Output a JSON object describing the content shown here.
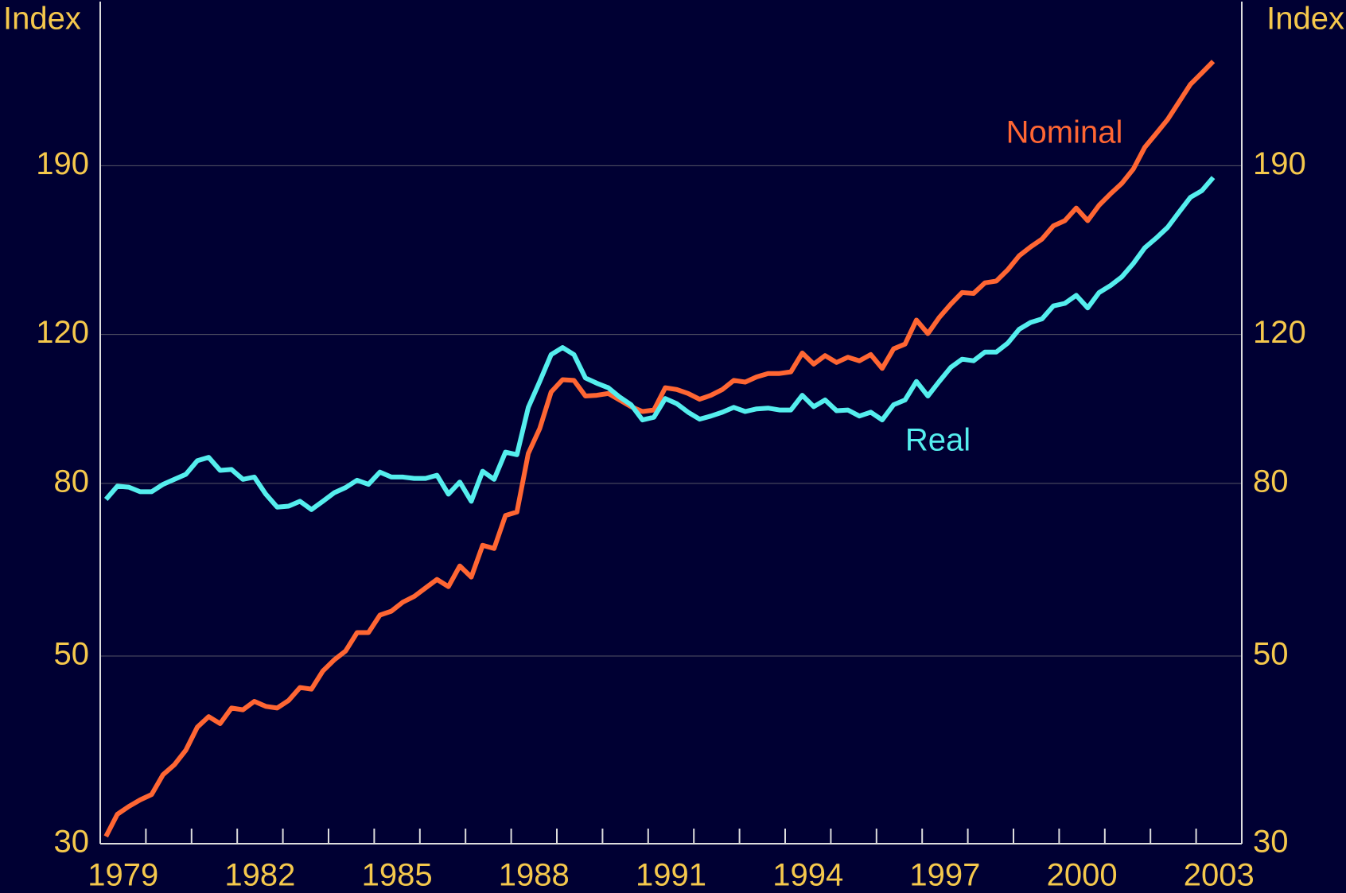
{
  "chart_data": {
    "type": "line",
    "y_label": "Index",
    "y2_label": "Index",
    "log_scale": true,
    "grid": true,
    "xlim": [
      1979,
      2004
    ],
    "xticks": [
      1980,
      1981,
      1982,
      1983,
      1984,
      1985,
      1986,
      1987,
      1988,
      1989,
      1990,
      1991,
      1992,
      1993,
      1994,
      1995,
      1996,
      1997,
      1998,
      1999,
      2000,
      2001,
      2002,
      2003
    ],
    "xlabels": [
      "1979",
      "1982",
      "1985",
      "1988",
      "1991",
      "1994",
      "1997",
      "2000",
      "2003"
    ],
    "ylim": [
      30,
      297
    ],
    "yticks": [
      30,
      50,
      80,
      120,
      190
    ],
    "annotations": [
      "Nominal",
      "Real"
    ],
    "x": [
      1979.125,
      1979.375,
      1979.625,
      1979.875,
      1980.125,
      1980.375,
      1980.625,
      1980.875,
      1981.125,
      1981.375,
      1981.625,
      1981.875,
      1982.125,
      1982.375,
      1982.625,
      1982.875,
      1983.125,
      1983.375,
      1983.625,
      1983.875,
      1984.125,
      1984.375,
      1984.625,
      1984.875,
      1985.125,
      1985.375,
      1985.625,
      1985.875,
      1986.125,
      1986.375,
      1986.625,
      1986.875,
      1987.125,
      1987.375,
      1987.625,
      1987.875,
      1988.125,
      1988.375,
      1988.625,
      1988.875,
      1989.125,
      1989.375,
      1989.625,
      1989.875,
      1990.125,
      1990.375,
      1990.625,
      1990.875,
      1991.125,
      1991.375,
      1991.625,
      1991.875,
      1992.125,
      1992.375,
      1992.625,
      1992.875,
      1993.125,
      1993.375,
      1993.625,
      1993.875,
      1994.125,
      1994.375,
      1994.625,
      1994.875,
      1995.125,
      1995.375,
      1995.625,
      1995.875,
      1996.125,
      1996.375,
      1996.625,
      1996.875,
      1997.125,
      1997.375,
      1997.625,
      1997.875,
      1998.125,
      1998.375,
      1998.625,
      1998.875,
      1999.125,
      1999.375,
      1999.625,
      1999.875,
      2000.125,
      2000.375,
      2000.625,
      2000.875,
      2001.125,
      2001.375,
      2001.625,
      2001.875,
      2002.125,
      2002.375,
      2002.625,
      2002.875,
      2003.125,
      2003.375
    ],
    "series": [
      {
        "name": "Nominal",
        "color": "#ff6633",
        "values": [
          30.6,
          32.5,
          33.2,
          33.8,
          34.3,
          36.2,
          37.2,
          38.7,
          41.2,
          42.4,
          41.6,
          43.4,
          43.2,
          44.2,
          43.6,
          43.4,
          44.3,
          45.9,
          45.7,
          48.0,
          49.5,
          50.7,
          53.3,
          53.3,
          55.9,
          56.5,
          57.9,
          58.8,
          60.2,
          61.6,
          60.4,
          63.9,
          62.0,
          67.6,
          67.0,
          73.3,
          74.0,
          86.8,
          92.9,
          102.6,
          106.1,
          105.9,
          101.5,
          101.7,
          102.2,
          100.4,
          98.6,
          97.3,
          97.7,
          103.8,
          103.3,
          102.2,
          100.6,
          101.7,
          103.3,
          105.9,
          105.4,
          106.9,
          107.9,
          107.9,
          108.4,
          114.1,
          110.7,
          113.3,
          111.2,
          112.8,
          111.7,
          113.6,
          109.4,
          115.4,
          116.9,
          124.8,
          120.3,
          125.7,
          130.3,
          134.5,
          134.2,
          138.1,
          138.8,
          143.1,
          148.7,
          152.3,
          155.6,
          161.3,
          163.6,
          169.3,
          163.6,
          170.6,
          176.0,
          181.1,
          188.3,
          199.7,
          207.4,
          215.4,
          226.0,
          237.1,
          244.6,
          252.4
        ]
      },
      {
        "name": "Real",
        "color": "#55eeee",
        "values": [
          76.6,
          79.4,
          79.2,
          78.2,
          78.2,
          79.8,
          80.9,
          82.0,
          85.1,
          85.9,
          82.9,
          83.1,
          80.9,
          81.4,
          77.7,
          75.0,
          75.2,
          76.2,
          74.5,
          76.2,
          78.0,
          79.1,
          80.7,
          79.8,
          82.5,
          81.4,
          81.4,
          81.1,
          81.1,
          81.8,
          77.7,
          80.3,
          76.2,
          82.7,
          80.9,
          87.1,
          86.5,
          98.4,
          105.6,
          113.6,
          115.8,
          113.6,
          106.6,
          105.1,
          103.8,
          101.2,
          99.1,
          95.1,
          95.8,
          100.8,
          99.4,
          97.1,
          95.3,
          96.1,
          97.1,
          98.4,
          97.3,
          98.0,
          98.2,
          97.7,
          97.7,
          101.7,
          98.6,
          100.4,
          97.5,
          97.7,
          96.1,
          97.1,
          95.1,
          99.1,
          100.4,
          105.6,
          101.5,
          105.6,
          109.7,
          112.2,
          111.7,
          114.4,
          114.4,
          117.2,
          121.7,
          124.0,
          125.2,
          129.7,
          130.6,
          133.5,
          129.0,
          134.5,
          137.1,
          140.4,
          145.6,
          151.9,
          156.0,
          160.6,
          167.4,
          174.3,
          177.5,
          184.0
        ]
      }
    ]
  }
}
